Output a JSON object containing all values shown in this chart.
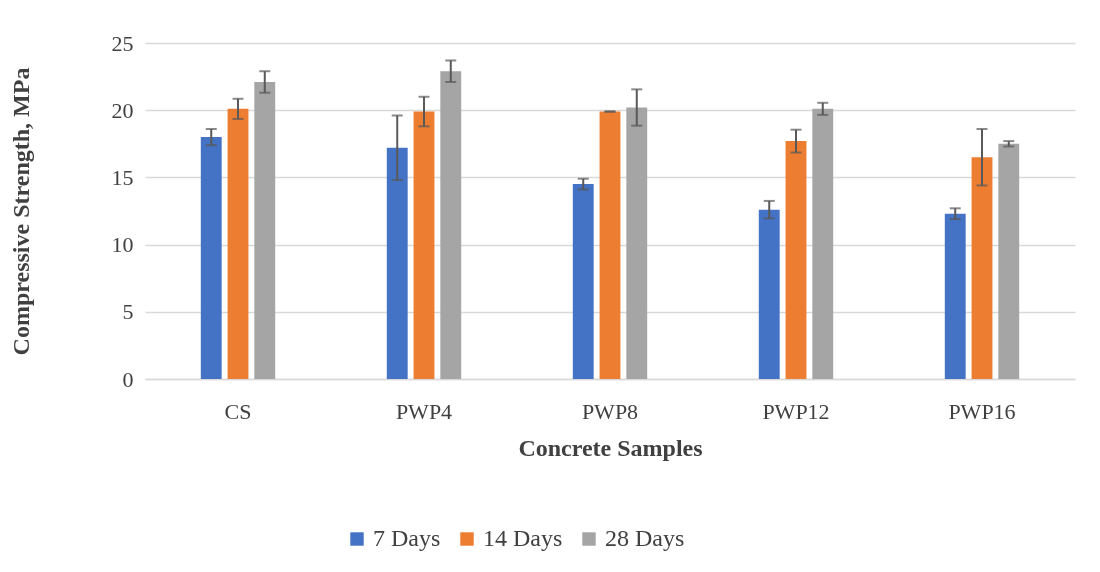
{
  "chart_data": {
    "type": "bar",
    "xlabel": "Concrete Samples",
    "ylabel": "Compressive Strength, MPa",
    "categories": [
      "CS",
      "PWP4",
      "PWP8",
      "PWP12",
      "PWP16"
    ],
    "series": [
      {
        "name": "7 Days",
        "color": "#4472c4",
        "values": [
          18.0,
          17.2,
          14.5,
          12.6,
          12.3
        ],
        "errors": [
          0.6,
          2.4,
          0.4,
          0.65,
          0.4
        ]
      },
      {
        "name": "14 Days",
        "color": "#ed7d31",
        "values": [
          20.1,
          19.9,
          19.9,
          17.7,
          16.5
        ],
        "errors": [
          0.75,
          1.1,
          0,
          0.85,
          2.1
        ]
      },
      {
        "name": "28 Days",
        "color": "#a5a5a5",
        "values": [
          22.1,
          22.9,
          20.2,
          20.1,
          17.5
        ],
        "errors": [
          0.8,
          0.8,
          1.35,
          0.45,
          0.2
        ]
      }
    ],
    "ylim": [
      0,
      25
    ],
    "yticks": [
      0,
      5,
      10,
      15,
      20,
      25
    ],
    "grid": "y",
    "legend": "bottom"
  }
}
